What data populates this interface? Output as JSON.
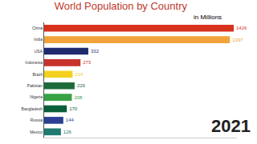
{
  "chart_data": {
    "type": "bar",
    "orientation": "horizontal",
    "title": "World Population by Country",
    "subtitle": "in Millions",
    "categories": [
      "China",
      "India",
      "USA",
      "Indonesia",
      "Brazil",
      "Pakistan",
      "Nigeria",
      "Bangladesh",
      "Russia",
      "Mexico"
    ],
    "values": [
      1426,
      1397,
      332,
      273,
      214,
      229,
      208,
      170,
      144,
      126
    ],
    "colors": [
      "#d8321f",
      "#f2a23a",
      "#1f2a6e",
      "#c8322c",
      "#f2d21e",
      "#1d6b3b",
      "#36a244",
      "#0b5e3a",
      "#2c3f93",
      "#1f7a70"
    ],
    "xlim": [
      0,
      1450
    ],
    "xticks": [],
    "grid": false,
    "data_labels": true,
    "tick_labels": "y",
    "annotations": [
      {
        "text": "2021"
      }
    ]
  }
}
